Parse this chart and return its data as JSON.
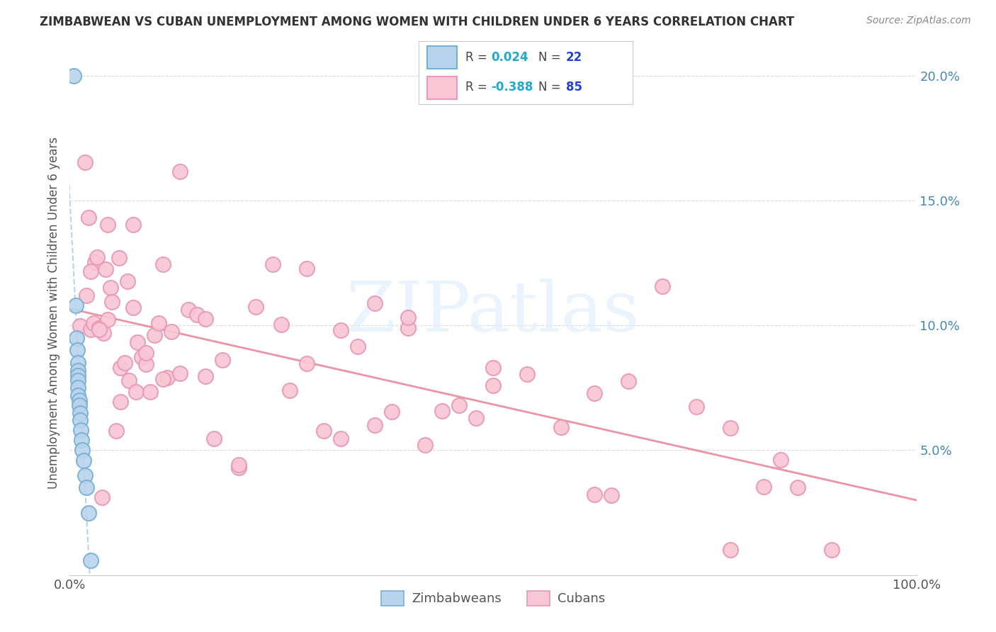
{
  "title": "ZIMBABWEAN VS CUBAN UNEMPLOYMENT AMONG WOMEN WITH CHILDREN UNDER 6 YEARS CORRELATION CHART",
  "source": "Source: ZipAtlas.com",
  "ylabel": "Unemployment Among Women with Children Under 6 years",
  "xlim": [
    0.0,
    1.0
  ],
  "ylim": [
    0.0,
    0.21
  ],
  "yticks": [
    0.05,
    0.1,
    0.15,
    0.2
  ],
  "ytick_labels": [
    "5.0%",
    "10.0%",
    "15.0%",
    "20.0%"
  ],
  "legend_r_zim": "0.024",
  "legend_n_zim": "22",
  "legend_r_cub": "-0.388",
  "legend_n_cub": "85",
  "zim_face_color": "#b8d4ed",
  "zim_edge_color": "#7aafd4",
  "cub_face_color": "#f9c6d5",
  "cub_edge_color": "#e899b4",
  "trend_zim_color": "#aaccee",
  "trend_cub_color": "#e8889a",
  "watermark_text": "ZIPatlas",
  "watermark_color": "#ddeeff",
  "background_color": "#ffffff",
  "ytick_color": "#4488bb",
  "r_color": "#22aacc",
  "n_color": "#2244cc",
  "label_color": "#555555"
}
